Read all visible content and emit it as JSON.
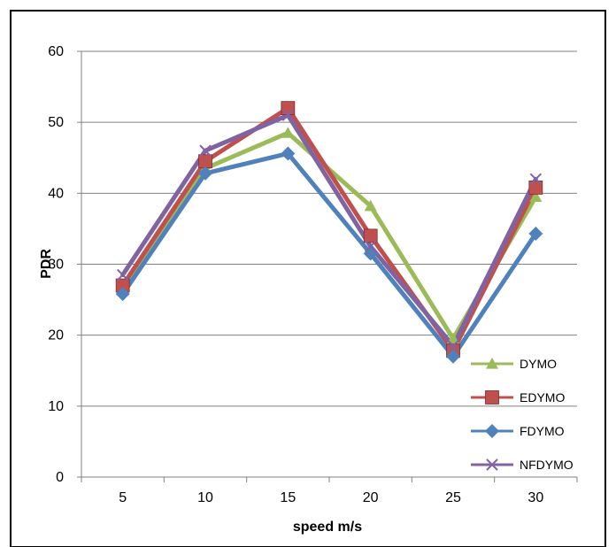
{
  "chart_data": {
    "type": "line",
    "title": "",
    "xlabel": "speed m/s",
    "ylabel": "PDR",
    "categories": [
      "5",
      "10",
      "15",
      "20",
      "25",
      "30"
    ],
    "ylim": [
      0,
      60
    ],
    "yticks": [
      "0",
      "10",
      "20",
      "30",
      "40",
      "50",
      "60"
    ],
    "grid": "horizontal",
    "legend_position": "right",
    "series": [
      {
        "name": "DYMO",
        "values": [
          26.5,
          43.5,
          48.5,
          38.2,
          19.5,
          39.5
        ],
        "color": "#9bbb59",
        "marker": "triangle"
      },
      {
        "name": "EDYMO",
        "values": [
          27.0,
          44.5,
          52.0,
          34.0,
          17.8,
          40.8
        ],
        "color": "#c0504d",
        "marker": "square"
      },
      {
        "name": "FDYMO",
        "values": [
          25.8,
          42.8,
          45.6,
          31.5,
          17.0,
          34.3
        ],
        "color": "#4f81bd",
        "marker": "diamond"
      },
      {
        "name": "NFDYMO",
        "values": [
          28.5,
          46.0,
          51.0,
          32.5,
          18.5,
          42.0
        ],
        "color": "#8064a2",
        "marker": "x"
      }
    ]
  }
}
